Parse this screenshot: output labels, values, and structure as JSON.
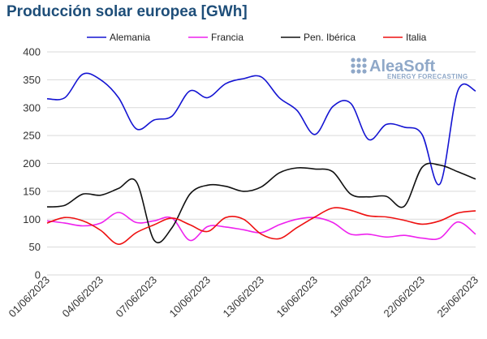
{
  "chart_data": {
    "type": "line",
    "title": "Producción solar europea [GWh]",
    "xlabel": "",
    "ylabel": "",
    "ylim": [
      0,
      400
    ],
    "yticks": [
      0,
      50,
      100,
      150,
      200,
      250,
      300,
      350,
      400
    ],
    "x": [
      "01/06/2023",
      "02/06/2023",
      "03/06/2023",
      "04/06/2023",
      "05/06/2023",
      "06/06/2023",
      "07/06/2023",
      "08/06/2023",
      "09/06/2023",
      "10/06/2023",
      "11/06/2023",
      "12/06/2023",
      "13/06/2023",
      "14/06/2023",
      "15/06/2023",
      "16/06/2023",
      "17/06/2023",
      "18/06/2023",
      "19/06/2023",
      "20/06/2023",
      "21/06/2023",
      "22/06/2023",
      "23/06/2023",
      "24/06/2023",
      "25/06/2023"
    ],
    "xtick_labels": [
      "01/06/2023",
      "04/06/2023",
      "07/06/2023",
      "10/06/2023",
      "13/06/2023",
      "16/06/2023",
      "19/06/2023",
      "22/06/2023",
      "25/06/2023"
    ],
    "grid": true,
    "legend_position": "top",
    "series": [
      {
        "name": "Alemania",
        "color": "#1414d2",
        "values": [
          316,
          318,
          360,
          350,
          318,
          262,
          278,
          285,
          330,
          318,
          343,
          352,
          355,
          318,
          295,
          252,
          302,
          308,
          243,
          270,
          265,
          252,
          163,
          330,
          330
        ]
      },
      {
        "name": "Francia",
        "color": "#ee22ee",
        "values": [
          97,
          93,
          88,
          93,
          112,
          94,
          97,
          102,
          62,
          87,
          86,
          81,
          76,
          90,
          100,
          103,
          94,
          73,
          73,
          68,
          71,
          66,
          66,
          95,
          73
        ]
      },
      {
        "name": "Pen. Ibérica",
        "color": "#111111",
        "values": [
          122,
          125,
          145,
          143,
          155,
          167,
          62,
          85,
          145,
          161,
          159,
          150,
          158,
          183,
          192,
          190,
          185,
          145,
          140,
          141,
          123,
          193,
          197,
          185,
          172
        ]
      },
      {
        "name": "Italia",
        "color": "#ee1111",
        "values": [
          93,
          103,
          97,
          80,
          55,
          76,
          90,
          102,
          90,
          78,
          103,
          100,
          73,
          65,
          85,
          104,
          120,
          116,
          106,
          104,
          98,
          91,
          97,
          111,
          115
        ]
      }
    ]
  },
  "watermark": {
    "name": "AleaSoft",
    "tagline": "ENERGY FORECASTING"
  }
}
